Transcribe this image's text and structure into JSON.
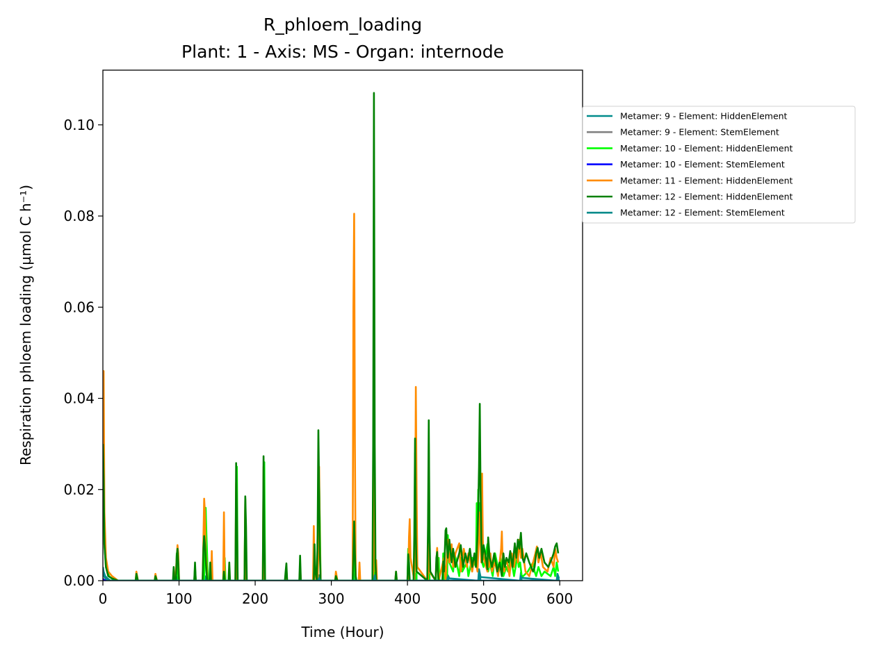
{
  "chart_data": {
    "type": "line",
    "title": "R_phloem_loading",
    "subtitle": "Plant: 1 - Axis: MS - Organ: internode",
    "xlabel": "Time (Hour)",
    "ylabel": "Respiration phloem loading (µmol C h⁻¹)",
    "xlim": [
      0,
      630
    ],
    "ylim": [
      0,
      0.112
    ],
    "xticks": [
      0,
      100,
      200,
      300,
      400,
      500,
      600
    ],
    "yticks": [
      0.0,
      0.02,
      0.04,
      0.06,
      0.08,
      0.1
    ],
    "xtick_labels": [
      "0",
      "100",
      "200",
      "300",
      "400",
      "500",
      "600"
    ],
    "ytick_labels": [
      "0.00",
      "0.02",
      "0.04",
      "0.06",
      "0.08",
      "0.10"
    ],
    "grid": false,
    "legend_position": "outside-right",
    "series": [
      {
        "name": "Metamer: 9 - Element: HiddenElement",
        "color": "#008b8b",
        "x": [
          0,
          1,
          3,
          6,
          10,
          97,
          98,
          99,
          133,
          134,
          136,
          175,
          176,
          177,
          211,
          212,
          213,
          283,
          284,
          286,
          330,
          331,
          332,
          356,
          357,
          358,
          410,
          411,
          412,
          452,
          453,
          455,
          493,
          494,
          496,
          548,
          549,
          551,
          596,
          597,
          599
        ],
        "values": [
          0.003,
          0.002,
          0.001,
          0.0005,
          0,
          0,
          0.0008,
          0,
          0,
          0.001,
          0,
          0,
          0.0009,
          0,
          0,
          0.0008,
          0,
          0,
          0.0012,
          0,
          0,
          0.0015,
          0,
          0,
          0.003,
          0,
          0,
          0.0015,
          0,
          0,
          0.0012,
          0.0005,
          0,
          0.0025,
          0.0008,
          0,
          0.0018,
          0.0006,
          0,
          0.0015,
          0.0005
        ]
      },
      {
        "name": "Metamer: 9 - Element: StemElement",
        "color": "#808080",
        "x": [
          0,
          2,
          5,
          10,
          600
        ],
        "values": [
          0.0005,
          0.0002,
          0.0001,
          0,
          0
        ]
      },
      {
        "name": "Metamer: 10 - Element: HiddenElement",
        "color": "#00ff00",
        "x": [
          0,
          1,
          2,
          4,
          8,
          15,
          96,
          97,
          98,
          99,
          120,
          121,
          122,
          133,
          134,
          135,
          136,
          137,
          138,
          159,
          160,
          161,
          175,
          176,
          177,
          186,
          187,
          188,
          211,
          212,
          213,
          282,
          283,
          284,
          285,
          286,
          329,
          330,
          331,
          332,
          355,
          356,
          357,
          400,
          401,
          402,
          409,
          410,
          411,
          412,
          427,
          428,
          429,
          440,
          441,
          442,
          446,
          447,
          448,
          452,
          453,
          455,
          460,
          462,
          468,
          470,
          472,
          478,
          480,
          485,
          490,
          491,
          492,
          493,
          494,
          495,
          496,
          497,
          498,
          500,
          505,
          506,
          508,
          512,
          515,
          520,
          522,
          526,
          530,
          532,
          536,
          540,
          545,
          546,
          548,
          550,
          552,
          558,
          565,
          567,
          569,
          572,
          576,
          580,
          588,
          592,
          594,
          596,
          598
        ],
        "values": [
          0.04,
          0.02,
          0.008,
          0.003,
          0.001,
          0,
          0,
          0.006,
          0.005,
          0,
          0,
          0.003,
          0,
          0,
          0.008,
          0.016,
          0.01,
          0.005,
          0,
          0,
          0.005,
          0,
          0,
          0.025,
          0,
          0,
          0.018,
          0,
          0,
          0.026,
          0,
          0,
          0.015,
          0.022,
          0.012,
          0,
          0,
          0.012,
          0.004,
          0,
          0,
          0.07,
          0,
          0,
          0.007,
          0,
          0,
          0.028,
          0.015,
          0,
          0,
          0.03,
          0,
          0,
          0.005,
          0,
          0,
          0.006,
          0,
          0,
          0.01,
          0.004,
          0.002,
          0.006,
          0.001,
          0.005,
          0.002,
          0.004,
          0.001,
          0.005,
          0.003,
          0.017,
          0.008,
          0.02,
          0.01,
          0.017,
          0.009,
          0.01,
          0.004,
          0.003,
          0.008,
          0.002,
          0.004,
          0.001,
          0.006,
          0.002,
          0.005,
          0.001,
          0.003,
          0.002,
          0.005,
          0.001,
          0.006,
          0.003,
          0.004,
          0.001,
          0.001,
          0.002,
          0.004,
          0.002,
          0.001,
          0.003,
          0.001,
          0.002,
          0.001,
          0.003,
          0.001,
          0.004,
          0.002
        ]
      },
      {
        "name": "Metamer: 10 - Element: StemElement",
        "color": "#0000ff",
        "x": [
          0,
          2,
          6,
          10,
          600
        ],
        "values": [
          0.0003,
          0.0001,
          0,
          0,
          0
        ]
      },
      {
        "name": "Metamer: 11 - Element: HiddenElement",
        "color": "#ff8c00",
        "x": [
          0,
          1,
          2,
          4,
          7,
          12,
          20,
          43,
          44,
          46,
          68,
          69,
          71,
          95,
          97,
          98,
          99,
          100,
          120,
          121,
          122,
          131,
          132,
          133,
          134,
          135,
          136,
          137,
          142,
          143,
          144,
          158,
          159,
          160,
          174,
          175,
          176,
          186,
          187,
          188,
          210,
          211,
          212,
          240,
          241,
          242,
          258,
          259,
          260,
          276,
          277,
          278,
          282,
          283,
          284,
          285,
          286,
          305,
          306,
          308,
          328,
          329,
          330,
          331,
          332,
          333,
          336,
          337,
          338,
          355,
          356,
          357,
          358,
          359,
          360,
          384,
          385,
          386,
          401,
          402,
          403,
          404,
          409,
          410,
          411,
          412,
          413,
          426,
          427,
          428,
          429,
          437,
          438,
          439,
          440,
          441,
          448,
          449,
          450,
          453,
          455,
          458,
          460,
          463,
          468,
          470,
          474,
          478,
          480,
          485,
          488,
          490,
          492,
          493,
          494,
          495,
          496,
          497,
          498,
          499,
          500,
          505,
          506,
          507,
          509,
          511,
          515,
          519,
          523,
          524,
          525,
          527,
          530,
          534,
          537,
          540,
          543,
          545,
          547,
          549,
          551,
          555,
          560,
          565,
          568,
          570,
          572,
          575,
          578,
          584,
          588,
          592,
          594,
          596,
          598
        ],
        "values": [
          0.04,
          0.046,
          0.015,
          0.005,
          0.002,
          0.001,
          0,
          0,
          0.002,
          0,
          0,
          0.0015,
          0,
          0,
          0.005,
          0.0078,
          0.006,
          0,
          0,
          0.002,
          0,
          0,
          0.009,
          0.018,
          0.015,
          0.006,
          0.004,
          0,
          0,
          0.0065,
          0,
          0,
          0.015,
          0,
          0,
          0.0215,
          0,
          0,
          0.018,
          0,
          0,
          0.025,
          0,
          0,
          0.0025,
          0,
          0,
          0.003,
          0,
          0,
          0.012,
          0,
          0,
          0.006,
          0.025,
          0.008,
          0,
          0,
          0.002,
          0,
          0,
          0.06,
          0.0805,
          0.03,
          0.001,
          0,
          0,
          0.004,
          0,
          0,
          0.05,
          0.01,
          0.002,
          0.0045,
          0,
          0,
          0.002,
          0,
          0,
          0.0095,
          0.0135,
          0.005,
          0,
          0.008,
          0.0425,
          0.02,
          0.003,
          0,
          0,
          0.008,
          0.002,
          0,
          0.004,
          0.0072,
          0.003,
          0,
          0.005,
          0.0022,
          0,
          0.009,
          0.004,
          0.008,
          0.003,
          0.006,
          0.0082,
          0.002,
          0.007,
          0.003,
          0.006,
          0.002,
          0.005,
          0.004,
          0.002,
          0.006,
          0.01,
          0.015,
          0.008,
          0.004,
          0.0235,
          0.009,
          0.005,
          0.002,
          0.009,
          0.003,
          0.006,
          0.002,
          0.004,
          0.001,
          0.007,
          0.0108,
          0.004,
          0.002,
          0.005,
          0.001,
          0.006,
          0.003,
          0.007,
          0.004,
          0.009,
          0.005,
          0.007,
          0.002,
          0.001,
          0.004,
          0.006,
          0.0075,
          0.004,
          0.006,
          0.003,
          0.002,
          0.005,
          0.003,
          0.007,
          0.005,
          0.004
        ]
      },
      {
        "name": "Metamer: 12 - Element: HiddenElement",
        "color": "#008000",
        "x": [
          0,
          1,
          2,
          4,
          7,
          12,
          20,
          43,
          44,
          46,
          68,
          69,
          71,
          92,
          93,
          94,
          96,
          97,
          98,
          99,
          100,
          120,
          121,
          122,
          131,
          132,
          133,
          134,
          135,
          136,
          137,
          140,
          141,
          142,
          158,
          159,
          160,
          165,
          166,
          167,
          174,
          175,
          176,
          177,
          186,
          187,
          188,
          189,
          210,
          211,
          212,
          213,
          239,
          240,
          241,
          242,
          258,
          259,
          260,
          277,
          278,
          279,
          281,
          282,
          283,
          284,
          285,
          286,
          305,
          306,
          308,
          328,
          329,
          330,
          331,
          332,
          333,
          354,
          355,
          356,
          357,
          358,
          359,
          384,
          385,
          386,
          400,
          401,
          402,
          403,
          408,
          409,
          410,
          411,
          412,
          426,
          427,
          428,
          429,
          430,
          437,
          438,
          439,
          440,
          441,
          446,
          447,
          448,
          449,
          450,
          451,
          452,
          453,
          455,
          458,
          460,
          463,
          468,
          470,
          473,
          476,
          479,
          482,
          485,
          488,
          490,
          492,
          493,
          494,
          495,
          496,
          497,
          498,
          500,
          502,
          505,
          506,
          508,
          511,
          514,
          518,
          521,
          524,
          526,
          528,
          530,
          533,
          535,
          538,
          541,
          543,
          545,
          547,
          549,
          551,
          553,
          556,
          560,
          565,
          567,
          569,
          571,
          573,
          576,
          580,
          585,
          590,
          592,
          594,
          596,
          598
        ],
        "values": [
          0.03,
          0.022,
          0.008,
          0.003,
          0.001,
          0.0005,
          0,
          0,
          0.0015,
          0,
          0,
          0.001,
          0,
          0,
          0.003,
          0,
          0,
          0.0055,
          0.007,
          0.004,
          0,
          0,
          0.004,
          0,
          0,
          0.007,
          0.0098,
          0.008,
          0.005,
          0.002,
          0,
          0,
          0.004,
          0,
          0,
          0.002,
          0,
          0,
          0.004,
          0,
          0,
          0.0258,
          0.015,
          0,
          0,
          0.0185,
          0.012,
          0,
          0,
          0.0273,
          0.01,
          0,
          0,
          0.002,
          0.0038,
          0,
          0,
          0.0055,
          0,
          0,
          0.008,
          0.002,
          0,
          0.01,
          0.033,
          0.02,
          0.006,
          0,
          0,
          0.001,
          0,
          0,
          0.005,
          0.013,
          0.006,
          0.001,
          0,
          0,
          0.03,
          0.107,
          0.03,
          0.004,
          0,
          0,
          0.002,
          0,
          0,
          0.0058,
          0.004,
          0,
          0,
          0.01,
          0.0312,
          0.01,
          0.002,
          0,
          0.012,
          0.0352,
          0.01,
          0.002,
          0,
          0.005,
          0.0063,
          0.002,
          0,
          0,
          0.0042,
          0.002,
          0.006,
          0.011,
          0.0115,
          0.007,
          0.005,
          0.009,
          0.004,
          0.007,
          0.003,
          0.006,
          0.0078,
          0.003,
          0.006,
          0.004,
          0.007,
          0.003,
          0.006,
          0.003,
          0.01,
          0.016,
          0.025,
          0.0388,
          0.02,
          0.009,
          0.004,
          0.0078,
          0.006,
          0.0025,
          0.0095,
          0.005,
          0.003,
          0.006,
          0.002,
          0.004,
          0.001,
          0.006,
          0.003,
          0.005,
          0.004,
          0.0065,
          0.003,
          0.0082,
          0.005,
          0.009,
          0.007,
          0.0105,
          0.005,
          0.004,
          0.006,
          0.004,
          0.002,
          0.003,
          0.006,
          0.0072,
          0.005,
          0.007,
          0.004,
          0.003,
          0.005,
          0.006,
          0.0075,
          0.0082,
          0.006
        ]
      },
      {
        "name": "Metamer: 12 - Element: StemElement",
        "color": "#008b8b",
        "x": [
          0,
          2,
          5,
          10,
          283,
          284,
          285,
          356,
          357,
          358,
          452,
          453,
          454,
          494,
          495,
          496,
          548,
          549,
          550,
          597,
          598,
          599
        ],
        "values": [
          0.0015,
          0.0008,
          0.0003,
          0,
          0,
          0.0006,
          0,
          0,
          0.0012,
          0,
          0,
          0.0008,
          0,
          0,
          0.0015,
          0,
          0,
          0.001,
          0,
          0,
          0.0008,
          0
        ]
      }
    ]
  }
}
